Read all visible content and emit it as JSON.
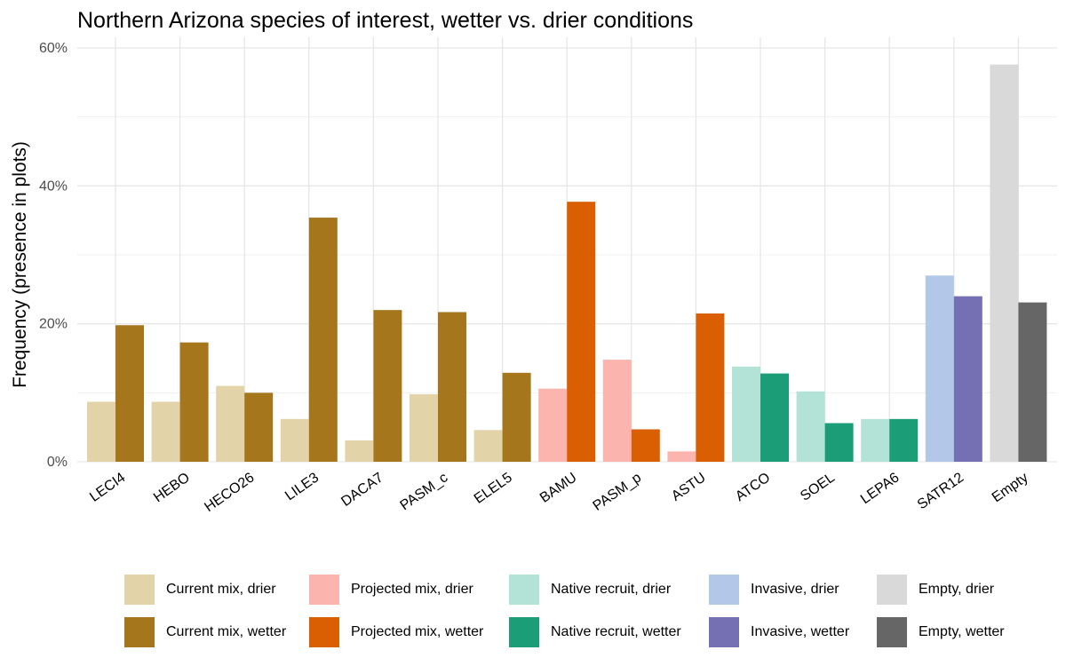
{
  "chart_data": {
    "type": "bar",
    "title": "Northern Arizona species of interest, wetter vs. drier conditions",
    "xlabel": "",
    "ylabel": "Frequency (presence in plots)",
    "ylim": [
      0,
      60
    ],
    "yticks": [
      0,
      20,
      40,
      60
    ],
    "ytick_labels": [
      "0%",
      "20%",
      "40%",
      "60%"
    ],
    "grid": true,
    "legend_position": "bottom",
    "categories": [
      "LECI4",
      "HEBO",
      "HECO26",
      "LILE3",
      "DACA7",
      "PASM_c",
      "ELEL5",
      "BAMU",
      "PASM_p",
      "ASTU",
      "ATCO",
      "SOEL",
      "LEPA6",
      "SATR12",
      "Empty"
    ],
    "groups": [
      "Current mix",
      "Current mix",
      "Current mix",
      "Current mix",
      "Current mix",
      "Current mix",
      "Current mix",
      "Projected mix",
      "Projected mix",
      "Projected mix",
      "Native recruit",
      "Native recruit",
      "Native recruit",
      "Invasive",
      "Empty"
    ],
    "series": [
      {
        "name": "drier",
        "values": [
          8.7,
          8.7,
          11.0,
          6.2,
          3.1,
          9.8,
          4.6,
          10.6,
          14.8,
          1.5,
          13.8,
          10.2,
          6.2,
          27.0,
          57.6
        ]
      },
      {
        "name": "wetter",
        "values": [
          19.8,
          17.3,
          10.0,
          35.4,
          22.0,
          21.7,
          12.9,
          37.7,
          4.7,
          21.5,
          12.8,
          5.6,
          6.2,
          24.0,
          23.1
        ]
      }
    ]
  },
  "legend": [
    {
      "label": "Current mix, drier",
      "color": "#e3d3a8"
    },
    {
      "label": "Current mix, wetter",
      "color": "#a6761d"
    },
    {
      "label": "Projected mix, drier",
      "color": "#fbb4ae"
    },
    {
      "label": "Projected mix, wetter",
      "color": "#d95f02"
    },
    {
      "label": "Native recruit, drier",
      "color": "#b3e2d7"
    },
    {
      "label": "Native recruit, wetter",
      "color": "#1b9e77"
    },
    {
      "label": "Invasive, drier",
      "color": "#b3c7e8"
    },
    {
      "label": "Invasive, wetter",
      "color": "#7570b3"
    },
    {
      "label": "Empty, drier",
      "color": "#d9d9d9"
    },
    {
      "label": "Empty, wetter",
      "color": "#666666"
    }
  ]
}
